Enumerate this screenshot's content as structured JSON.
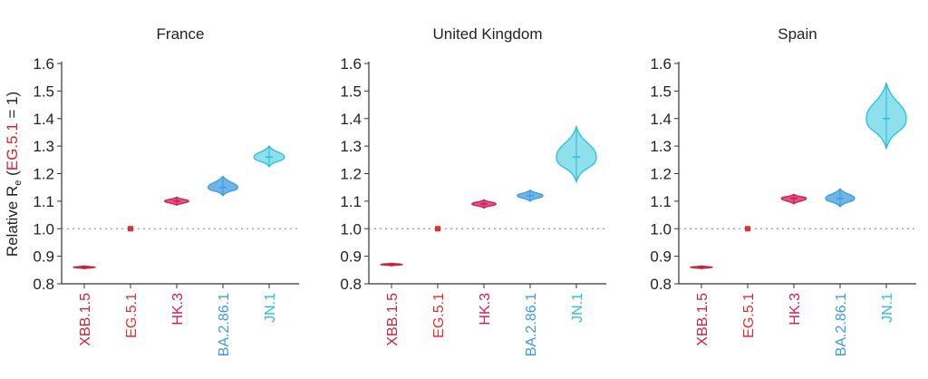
{
  "ylabel": {
    "prefix": "Relative R",
    "subscript": "e",
    "open": " (",
    "highlight": "EG.5.1",
    "suffix": " = 1)"
  },
  "chart_data": [
    {
      "type": "violin",
      "title": "France",
      "categories": [
        "XBB.1.5",
        "EG.5.1",
        "HK.3",
        "BA.2.86.1",
        "JN.1"
      ],
      "colors": [
        "#c2263a",
        "#e03030",
        "#d01c55",
        "#3d9be0",
        "#2bc0d6"
      ],
      "fills": [
        "#d6506a",
        "#e03030",
        "#e0587e",
        "#6fb5ea",
        "#8ee0ec"
      ],
      "median": [
        0.86,
        1.0,
        1.1,
        1.15,
        1.26
      ],
      "low": [
        0.855,
        1.0,
        1.085,
        1.12,
        1.225
      ],
      "high": [
        0.865,
        1.0,
        1.115,
        1.19,
        1.3
      ],
      "ylim": [
        0.8,
        1.6
      ],
      "yticks": [
        "0.8",
        "0.9",
        "1.0",
        "1.1",
        "1.2",
        "1.3",
        "1.4",
        "1.5",
        "1.6"
      ],
      "reference_line": 1.0
    },
    {
      "type": "violin",
      "title": "United Kingdom",
      "categories": [
        "XBB.1.5",
        "EG.5.1",
        "HK.3",
        "BA.2.86.1",
        "JN.1"
      ],
      "colors": [
        "#c2263a",
        "#e03030",
        "#d01c55",
        "#3d9be0",
        "#2bc0d6"
      ],
      "fills": [
        "#d6506a",
        "#e03030",
        "#e0587e",
        "#6fb5ea",
        "#8ee0ec"
      ],
      "median": [
        0.87,
        1.0,
        1.09,
        1.12,
        1.26
      ],
      "low": [
        0.865,
        1.0,
        1.075,
        1.1,
        1.17
      ],
      "high": [
        0.875,
        1.0,
        1.105,
        1.14,
        1.37
      ],
      "ylim": [
        0.8,
        1.6
      ],
      "yticks": [
        "0.8",
        "0.9",
        "1.0",
        "1.1",
        "1.2",
        "1.3",
        "1.4",
        "1.5",
        "1.6"
      ],
      "reference_line": 1.0
    },
    {
      "type": "violin",
      "title": "Spain",
      "categories": [
        "XBB.1.5",
        "EG.5.1",
        "HK.3",
        "BA.2.86.1",
        "JN.1"
      ],
      "colors": [
        "#c2263a",
        "#e03030",
        "#d01c55",
        "#3d9be0",
        "#2bc0d6"
      ],
      "fills": [
        "#d6506a",
        "#e03030",
        "#e0587e",
        "#6fb5ea",
        "#8ee0ec"
      ],
      "median": [
        0.86,
        1.0,
        1.11,
        1.11,
        1.4
      ],
      "low": [
        0.855,
        1.0,
        1.09,
        1.08,
        1.29
      ],
      "high": [
        0.865,
        1.0,
        1.125,
        1.145,
        1.53
      ],
      "ylim": [
        0.8,
        1.6
      ],
      "yticks": [
        "0.8",
        "0.9",
        "1.0",
        "1.1",
        "1.2",
        "1.3",
        "1.4",
        "1.5",
        "1.6"
      ],
      "reference_line": 1.0
    }
  ]
}
